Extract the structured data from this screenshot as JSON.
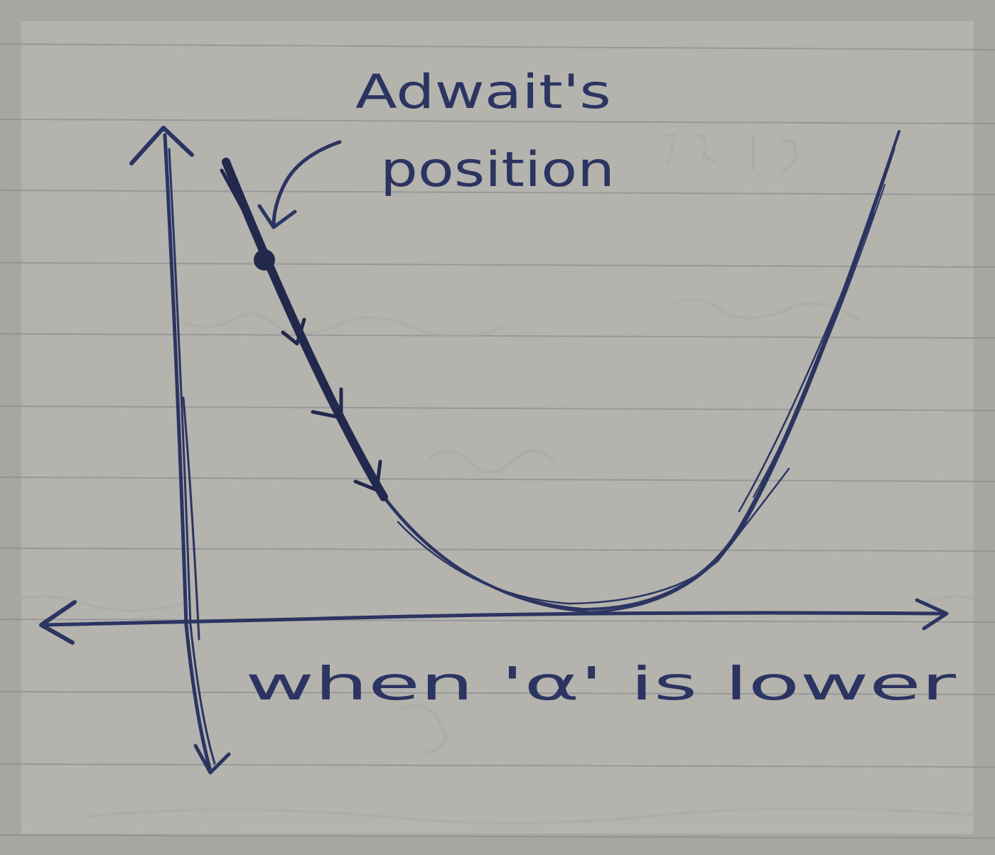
{
  "annotation": {
    "title_line1": "Adwait's",
    "title_line2": "position"
  },
  "caption": "when 'α' is lower",
  "colors": {
    "paper": "#b4b3ae",
    "rule_line": "#8e8f94",
    "ink": "#2c3561",
    "ink_dark": "#23294d",
    "bleed_through": "#a9a8a5"
  },
  "icons": [
    "up-arrow-icon",
    "down-arrow-icon",
    "left-arrow-icon",
    "right-arrow-icon",
    "curved-pointer-arrow-icon",
    "position-dot-icon",
    "step-arrow-icon"
  ]
}
